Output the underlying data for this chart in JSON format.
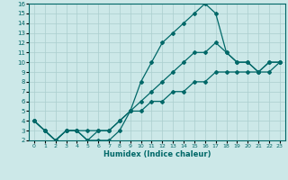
{
  "xlabel": "Humidex (Indice chaleur)",
  "xlim": [
    -0.5,
    23.5
  ],
  "ylim": [
    2,
    16
  ],
  "xticks": [
    0,
    1,
    2,
    3,
    4,
    5,
    6,
    7,
    8,
    9,
    10,
    11,
    12,
    13,
    14,
    15,
    16,
    17,
    18,
    19,
    20,
    21,
    22,
    23
  ],
  "yticks": [
    2,
    3,
    4,
    5,
    6,
    7,
    8,
    9,
    10,
    11,
    12,
    13,
    14,
    15,
    16
  ],
  "bg_color": "#cce8e8",
  "grid_color": "#aacece",
  "line_color": "#006868",
  "lines": [
    {
      "x": [
        0,
        1,
        2,
        3,
        4,
        5,
        6,
        7,
        8,
        9,
        10,
        11,
        12,
        13,
        14,
        15,
        16,
        17,
        18,
        19,
        20,
        21,
        22,
        23
      ],
      "y": [
        4,
        3,
        2,
        3,
        3,
        2,
        2,
        2,
        3,
        5,
        8,
        10,
        12,
        13,
        14,
        15,
        16,
        15,
        11,
        10,
        10,
        9,
        10,
        10
      ]
    },
    {
      "x": [
        0,
        1,
        2,
        3,
        4,
        5,
        6,
        7,
        8,
        9,
        10,
        11,
        12,
        13,
        14,
        15,
        16,
        17,
        18,
        19,
        20,
        21,
        22,
        23
      ],
      "y": [
        4,
        3,
        2,
        3,
        3,
        2,
        3,
        3,
        4,
        5,
        6,
        7,
        8,
        9,
        10,
        11,
        11,
        12,
        11,
        10,
        10,
        9,
        10,
        10
      ]
    },
    {
      "x": [
        0,
        1,
        2,
        3,
        4,
        5,
        6,
        7,
        8,
        9,
        10,
        11,
        12,
        13,
        14,
        15,
        16,
        17,
        18,
        19,
        20,
        21,
        22,
        23
      ],
      "y": [
        4,
        3,
        2,
        3,
        3,
        3,
        3,
        3,
        4,
        5,
        5,
        6,
        6,
        7,
        7,
        8,
        8,
        9,
        9,
        9,
        9,
        9,
        9,
        10
      ]
    }
  ]
}
